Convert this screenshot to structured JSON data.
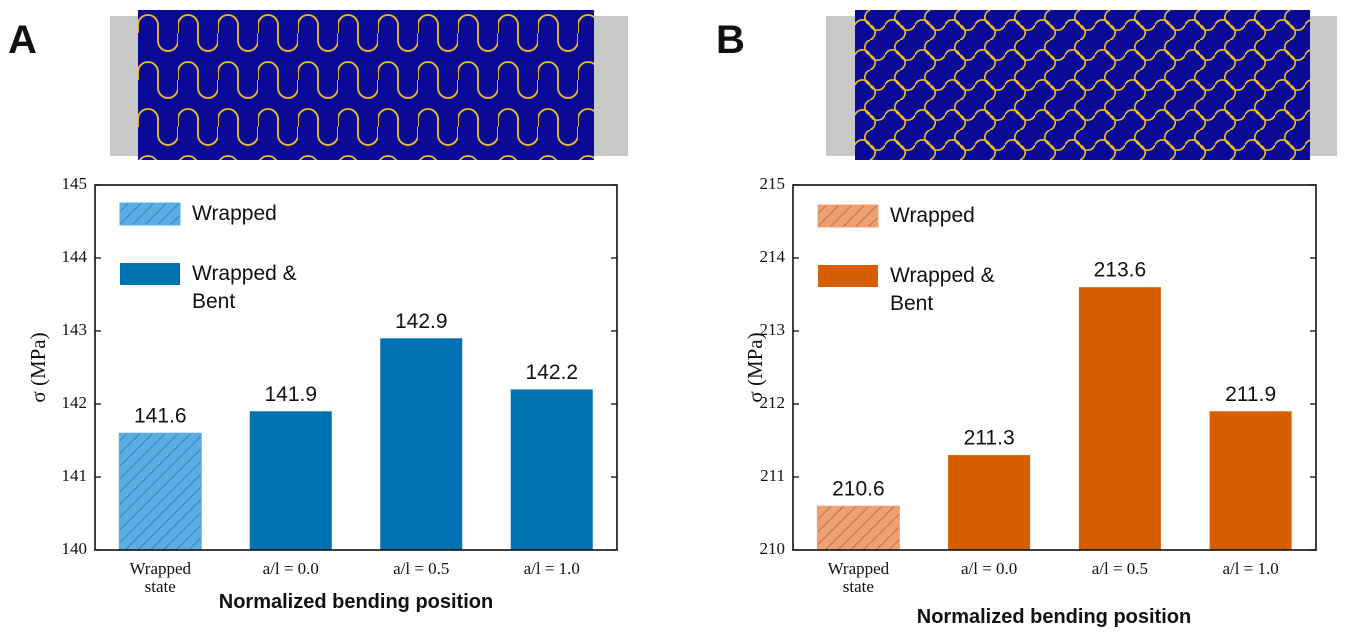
{
  "chart_data": [
    {
      "type": "bar",
      "panel": "A",
      "x_label": "Normalized bending position",
      "y_label": "σ (MPa)",
      "categories": [
        "Wrapped state",
        "a/l = 0.0",
        "a/l = 0.5",
        "a/l = 1.0"
      ],
      "series": [
        {
          "name": "Wrapped",
          "color": "#5aaee6",
          "hatch": true,
          "values": [
            141.6,
            null,
            null,
            null
          ]
        },
        {
          "name": "Wrapped & Bent",
          "color": "#0072b2",
          "values": [
            null,
            141.9,
            142.9,
            142.2
          ]
        }
      ],
      "ylim": [
        140,
        145
      ],
      "yticks": [
        140,
        141,
        142,
        143,
        144,
        145
      ]
    },
    {
      "type": "bar",
      "panel": "B",
      "x_label": "Normalized bending position",
      "y_label": "σ (MPa)",
      "categories": [
        "Wrapped state",
        "a/l = 0.0",
        "a/l = 0.5",
        "a/l = 1.0"
      ],
      "series": [
        {
          "name": "Wrapped",
          "color": "#f0a070",
          "hatch": true,
          "values": [
            210.6,
            null,
            null,
            null
          ]
        },
        {
          "name": "Wrapped & Bent",
          "color": "#d55e00",
          "values": [
            null,
            211.3,
            213.6,
            211.9
          ]
        }
      ],
      "ylim": [
        210,
        215
      ],
      "yticks": [
        210,
        211,
        212,
        213,
        214,
        215
      ]
    }
  ]
}
